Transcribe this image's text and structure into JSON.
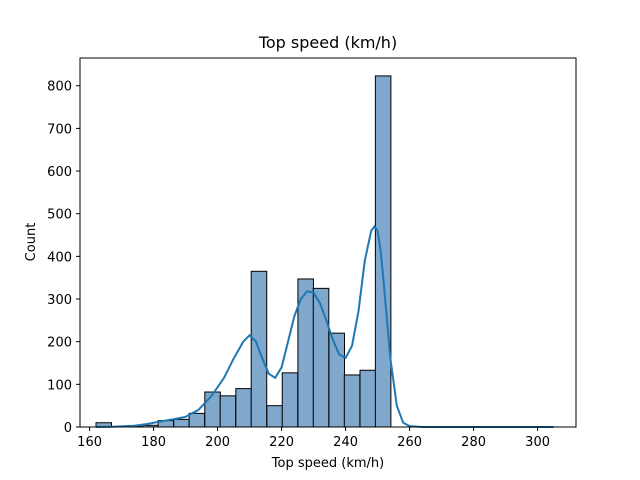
{
  "chart_data": {
    "type": "bar",
    "title": "Top speed (km/h)",
    "xlabel": "Top speed (km/h)",
    "ylabel": "Count",
    "xlim": [
      157,
      312
    ],
    "ylim": [
      0,
      865
    ],
    "xticks": [
      160,
      180,
      200,
      220,
      240,
      260,
      280,
      300
    ],
    "yticks": [
      0,
      100,
      200,
      300,
      400,
      500,
      600,
      700,
      800
    ],
    "grid": false,
    "legend": "none",
    "bin_width": 4.85,
    "bins": [
      {
        "start": 162.0,
        "count": 10
      },
      {
        "start": 166.9,
        "count": 1
      },
      {
        "start": 171.7,
        "count": 1
      },
      {
        "start": 176.6,
        "count": 4
      },
      {
        "start": 181.4,
        "count": 15
      },
      {
        "start": 186.3,
        "count": 18
      },
      {
        "start": 191.1,
        "count": 32
      },
      {
        "start": 196.0,
        "count": 82
      },
      {
        "start": 200.8,
        "count": 73
      },
      {
        "start": 205.7,
        "count": 90
      },
      {
        "start": 210.5,
        "count": 365
      },
      {
        "start": 215.4,
        "count": 50
      },
      {
        "start": 220.2,
        "count": 127
      },
      {
        "start": 225.1,
        "count": 347
      },
      {
        "start": 229.9,
        "count": 325
      },
      {
        "start": 234.8,
        "count": 220
      },
      {
        "start": 239.6,
        "count": 122
      },
      {
        "start": 244.5,
        "count": 133
      },
      {
        "start": 249.3,
        "count": 823
      }
    ],
    "kde": {
      "x": [
        162,
        168,
        174,
        178,
        182,
        186,
        190,
        194,
        198,
        202,
        205,
        208,
        210,
        212,
        214,
        216,
        218,
        220,
        222,
        224,
        226,
        228,
        230,
        232,
        234,
        236,
        238,
        240,
        242,
        244,
        246,
        248,
        249,
        250,
        251,
        252,
        254,
        256,
        258,
        260,
        264,
        270,
        280,
        290,
        305
      ],
      "y": [
        0,
        1,
        3,
        7,
        13,
        18,
        24,
        40,
        72,
        115,
        160,
        200,
        215,
        200,
        160,
        125,
        115,
        140,
        200,
        260,
        300,
        318,
        315,
        290,
        250,
        205,
        170,
        162,
        190,
        270,
        390,
        460,
        470,
        460,
        410,
        330,
        160,
        50,
        10,
        2,
        0,
        0,
        0,
        0,
        0
      ]
    },
    "colors": {
      "bar_fill": "#7fa8cc",
      "bar_edge": "#000000",
      "kde_line": "#1f77b4"
    }
  }
}
